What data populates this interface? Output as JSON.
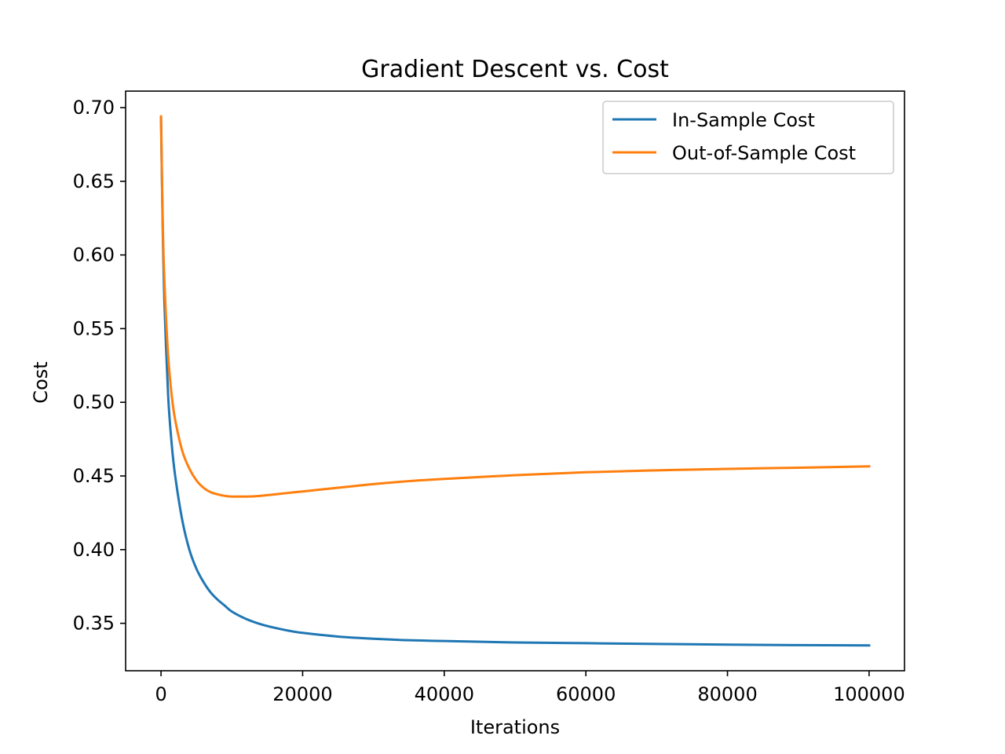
{
  "chart_data": {
    "type": "line",
    "title": "Gradient Descent vs. Cost",
    "xlabel": "Iterations",
    "ylabel": "Cost",
    "xlim": [
      -5000,
      105000
    ],
    "ylim": [
      0.3178,
      0.7112
    ],
    "xticks": [
      0,
      20000,
      40000,
      60000,
      80000,
      100000
    ],
    "xtick_labels": [
      "0",
      "20000",
      "40000",
      "60000",
      "80000",
      "100000"
    ],
    "yticks": [
      0.35,
      0.4,
      0.45,
      0.5,
      0.55,
      0.6,
      0.65,
      0.7
    ],
    "ytick_labels": [
      "0.35",
      "0.40",
      "0.45",
      "0.50",
      "0.55",
      "0.60",
      "0.65",
      "0.70"
    ],
    "grid": false,
    "legend_position": "top-right",
    "series": [
      {
        "name": "In-Sample Cost",
        "color": "#1f77b4",
        "x": [
          0,
          250,
          500,
          1000,
          1500,
          2000,
          3000,
          4000,
          5000,
          6000,
          7000,
          8000,
          9000,
          10000,
          12000,
          14000,
          16000,
          18000,
          20000,
          25000,
          30000,
          35000,
          40000,
          50000,
          60000,
          70000,
          80000,
          90000,
          100000
        ],
        "values": [
          0.693,
          0.615,
          0.565,
          0.505,
          0.472,
          0.45,
          0.42,
          0.4,
          0.387,
          0.378,
          0.371,
          0.366,
          0.362,
          0.358,
          0.353,
          0.3495,
          0.347,
          0.345,
          0.3435,
          0.341,
          0.3395,
          0.3385,
          0.338,
          0.337,
          0.3365,
          0.336,
          0.3355,
          0.3352,
          0.335
        ]
      },
      {
        "name": "Out-of-Sample Cost",
        "color": "#ff7f0e",
        "x": [
          0,
          250,
          500,
          1000,
          1500,
          2000,
          3000,
          4000,
          5000,
          6000,
          7000,
          8000,
          9000,
          10000,
          12000,
          14000,
          16000,
          18000,
          20000,
          25000,
          30000,
          35000,
          40000,
          50000,
          60000,
          70000,
          80000,
          90000,
          100000
        ],
        "values": [
          0.694,
          0.62,
          0.58,
          0.532,
          0.505,
          0.488,
          0.467,
          0.455,
          0.447,
          0.442,
          0.439,
          0.4375,
          0.4365,
          0.436,
          0.436,
          0.4365,
          0.4375,
          0.4385,
          0.4395,
          0.442,
          0.4445,
          0.4465,
          0.448,
          0.4505,
          0.4525,
          0.4538,
          0.4548,
          0.4556,
          0.4565
        ]
      }
    ]
  }
}
